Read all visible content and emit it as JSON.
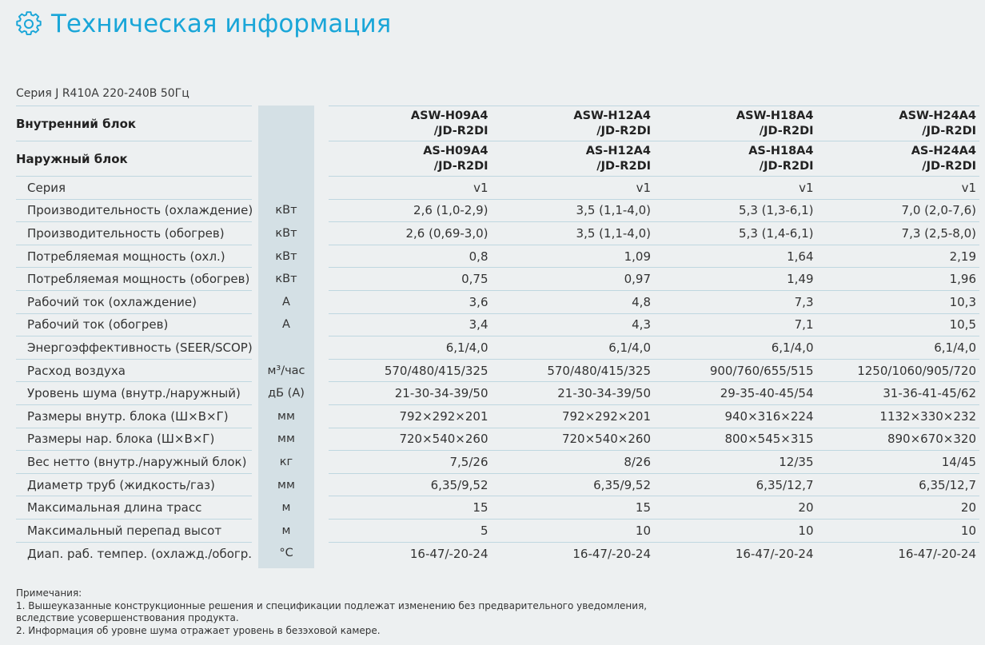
{
  "page": {
    "title": "Техническая информация",
    "series_caption": "Серия J R410A 220-240В 50Гц"
  },
  "colors": {
    "accent": "#1aa6d8",
    "unit_band": "#d4e0e5",
    "divider": "#bfd7e0"
  },
  "icons": {
    "title_icon": "gear-icon"
  },
  "table": {
    "model_rows": [
      {
        "label": "Внутренний блок",
        "values": [
          [
            "ASW-H09A4",
            "/JD-R2DI"
          ],
          [
            "ASW-H12A4",
            "/JD-R2DI"
          ],
          [
            "ASW-H18A4",
            "/JD-R2DI"
          ],
          [
            "ASW-H24A4",
            "/JD-R2DI"
          ]
        ]
      },
      {
        "label": "Наружный блок",
        "values": [
          [
            "AS-H09A4",
            "/JD-R2DI"
          ],
          [
            "AS-H12A4",
            "/JD-R2DI"
          ],
          [
            "AS-H18A4",
            "/JD-R2DI"
          ],
          [
            "AS-H24A4",
            "/JD-R2DI"
          ]
        ]
      }
    ],
    "rows": [
      {
        "label": "Серия",
        "unit": "",
        "values": [
          "v1",
          "v1",
          "v1",
          "v1"
        ]
      },
      {
        "label": "Производительность (охлаждение)",
        "unit": "кВт",
        "values": [
          "2,6 (1,0-2,9)",
          "3,5 (1,1-4,0)",
          "5,3 (1,3-6,1)",
          "7,0 (2,0-7,6)"
        ]
      },
      {
        "label": "Производительность (обогрев)",
        "unit": "кВт",
        "values": [
          "2,6 (0,69-3,0)",
          "3,5 (1,1-4,0)",
          "5,3 (1,4-6,1)",
          "7,3 (2,5-8,0)"
        ]
      },
      {
        "label": "Потребляемая мощность (охл.)",
        "unit": "кВт",
        "values": [
          "0,8",
          "1,09",
          "1,64",
          "2,19"
        ]
      },
      {
        "label": "Потребляемая мощность (обогрев)",
        "unit": "кВт",
        "values": [
          "0,75",
          "0,97",
          "1,49",
          "1,96"
        ]
      },
      {
        "label": "Рабочий ток (охлаждение)",
        "unit": "А",
        "values": [
          "3,6",
          "4,8",
          "7,3",
          "10,3"
        ]
      },
      {
        "label": "Рабочий ток (обогрев)",
        "unit": "А",
        "values": [
          "3,4",
          "4,3",
          "7,1",
          "10,5"
        ]
      },
      {
        "label": "Энергоэффективность (SEER/SCOP)",
        "unit": "",
        "values": [
          "6,1/4,0",
          "6,1/4,0",
          "6,1/4,0",
          "6,1/4,0"
        ]
      },
      {
        "label": "Расход воздуха",
        "unit": "м³/час",
        "values": [
          "570/480/415/325",
          "570/480/415/325",
          "900/760/655/515",
          "1250/1060/905/720"
        ]
      },
      {
        "label": "Уровень шума (внутр./наружный)",
        "unit": "дБ (А)",
        "values": [
          "21-30-34-39/50",
          "21-30-34-39/50",
          "29-35-40-45/54",
          "31-36-41-45/62"
        ]
      },
      {
        "label": "Размеры внутр. блока (Ш×В×Г)",
        "unit": "мм",
        "values": [
          "792×292×201",
          "792×292×201",
          "940×316×224",
          "1132×330×232"
        ]
      },
      {
        "label": "Размеры нар. блока (Ш×В×Г)",
        "unit": "мм",
        "values": [
          "720×540×260",
          "720×540×260",
          "800×545×315",
          "890×670×320"
        ]
      },
      {
        "label": "Вес нетто (внутр./наружный блок)",
        "unit": "кг",
        "values": [
          "7,5/26",
          "8/26",
          "12/35",
          "14/45"
        ]
      },
      {
        "label": "Диаметр труб (жидкость/газ)",
        "unit": "мм",
        "values": [
          "6,35/9,52",
          "6,35/9,52",
          "6,35/12,7",
          "6,35/12,7"
        ]
      },
      {
        "label": "Максимальная длина трасс",
        "unit": "м",
        "values": [
          "15",
          "15",
          "20",
          "20"
        ]
      },
      {
        "label": "Максимальный перепад высот",
        "unit": "м",
        "values": [
          "5",
          "10",
          "10",
          "10"
        ]
      },
      {
        "label": "Диап. раб. темпер. (охлажд./обогр.)",
        "unit": "°С",
        "values": [
          "16-47/-20-24",
          "16-47/-20-24",
          "16-47/-20-24",
          "16-47/-20-24"
        ]
      }
    ]
  },
  "notes": [
    "Примечания:",
    "1. Вышеуказанные конструкционные решения и спецификации подлежат изменению без предварительного уведомления,",
    "вследствие усовершенствования продукта.",
    "2. Информация об уровне шума отражает уровень в безэховой камере."
  ]
}
